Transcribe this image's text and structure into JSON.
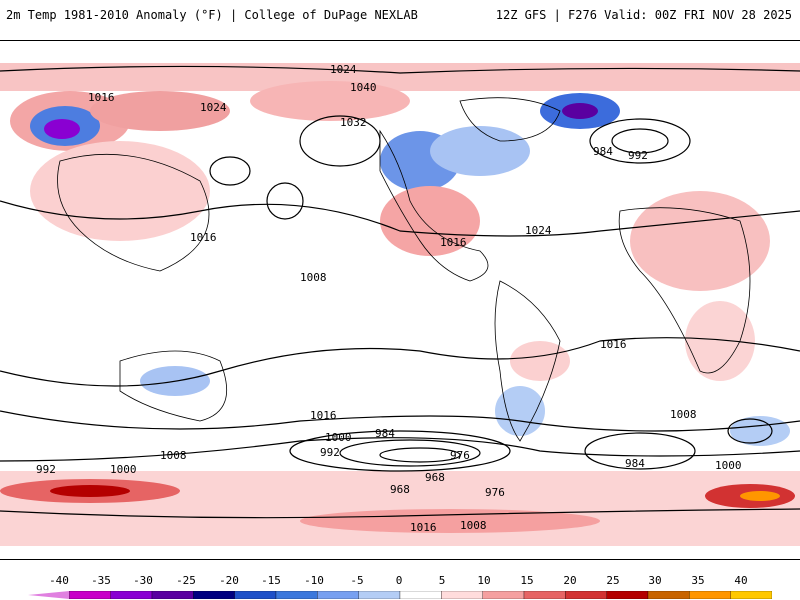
{
  "header": {
    "left_title": "2m Temp 1981-2010 Anomaly (°F) | College of DuPage NEXLAB",
    "right_title": "12Z GFS | F276 Valid: 00Z FRI NOV 28 2025"
  },
  "map": {
    "projection": "global-equirectangular",
    "isobar_labels": [
      "1024",
      "1016",
      "1040",
      "1032",
      "1024",
      "1016",
      "1016",
      "1008",
      "1000",
      "992",
      "984",
      "976",
      "968",
      "1016",
      "1008",
      "1000",
      "992",
      "984",
      "1024",
      "1016",
      "1008",
      "1000",
      "992",
      "984",
      "968",
      "976",
      "1016",
      "1008"
    ],
    "contour_units": "hPa"
  },
  "colorbar": {
    "ticks": [
      "-40",
      "-35",
      "-30",
      "-25",
      "-20",
      "-15",
      "-10",
      "-5",
      "0",
      "5",
      "10",
      "15",
      "20",
      "25",
      "30",
      "35",
      "40"
    ],
    "colors": [
      "#c800c8",
      "#8a00d2",
      "#5a00a0",
      "#000080",
      "#1e50c8",
      "#3c78dc",
      "#78a0f0",
      "#b4cdf5",
      "#ffffff",
      "#ffdcdc",
      "#f5a0a0",
      "#e66464",
      "#d23232",
      "#b40000",
      "#c86400",
      "#ff9600",
      "#ffc800"
    ]
  }
}
